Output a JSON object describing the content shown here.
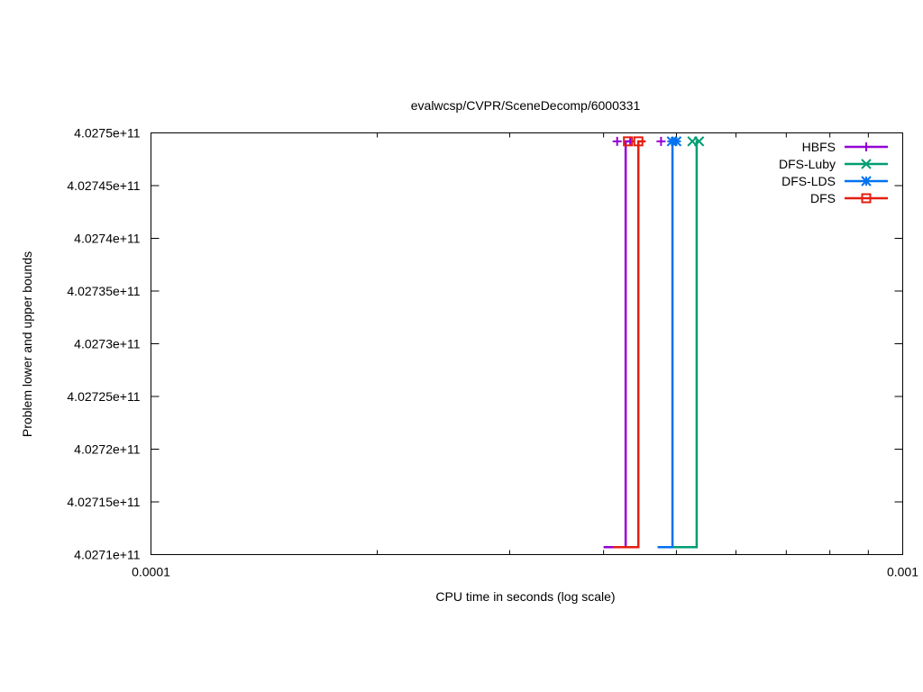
{
  "chart_data": {
    "type": "line",
    "title": "evalwcsp/CVPR/SceneDecomp/6000331",
    "xlabel": "CPU time in seconds (log scale)",
    "ylabel": "Problem lower and upper bounds",
    "x_scale": "log",
    "xlim": [
      0.0001,
      0.001
    ],
    "ylim": [
      402710000000,
      402750000000
    ],
    "x_ticks": [
      {
        "value": 0.0001,
        "label": "0.0001"
      },
      {
        "value": 0.001,
        "label": "0.001"
      }
    ],
    "y_ticks": [
      {
        "value": 402710000000,
        "label": "4.0271e+11"
      },
      {
        "value": 402715000000,
        "label": "4.02715e+11"
      },
      {
        "value": 402720000000,
        "label": "4.0272e+11"
      },
      {
        "value": 402725000000,
        "label": "4.02725e+11"
      },
      {
        "value": 402730000000,
        "label": "4.0273e+11"
      },
      {
        "value": 402735000000,
        "label": "4.02735e+11"
      },
      {
        "value": 402740000000,
        "label": "4.0274e+11"
      },
      {
        "value": 402745000000,
        "label": "4.02745e+11"
      },
      {
        "value": 402750000000,
        "label": "4.0275e+11"
      }
    ],
    "grid": false,
    "legend_position": "top-right",
    "series": [
      {
        "name": "HBFS",
        "color": "#9400d3",
        "marker": "plus",
        "lower": [
          [
            0.0004,
            402710700000
          ],
          [
            0.000428,
            402710700000
          ]
        ],
        "upper": [
          [
            0.000428,
            402749200000
          ],
          [
            0.000434,
            402749200000
          ]
        ],
        "points": [
          [
            0.000417,
            402749200000
          ],
          [
            0.000434,
            402749200000
          ],
          [
            0.000477,
            402749200000
          ]
        ]
      },
      {
        "name": "DFS-Luby",
        "color": "#009e73",
        "marker": "cross",
        "lower": [
          [
            0.000494,
            402710700000
          ],
          [
            0.000532,
            402710700000
          ]
        ],
        "upper": [
          [
            0.000532,
            402749200000
          ],
          [
            0.000536,
            402749200000
          ]
        ],
        "points": [
          [
            0.000525,
            402749200000
          ],
          [
            0.000536,
            402749200000
          ]
        ]
      },
      {
        "name": "DFS-LDS",
        "color": "#0072f0",
        "marker": "star",
        "lower": [
          [
            0.000472,
            402710700000
          ],
          [
            0.000494,
            402710700000
          ]
        ],
        "upper": [
          [
            0.000494,
            402749200000
          ],
          [
            0.0005,
            402749200000
          ]
        ],
        "points": [
          [
            0.000493,
            402749200000
          ],
          [
            0.0005,
            402749200000
          ]
        ]
      },
      {
        "name": "DFS",
        "color": "#e51e10",
        "marker": "square",
        "lower": [
          [
            0.000412,
            402710700000
          ],
          [
            0.000445,
            402710700000
          ]
        ],
        "upper": [
          [
            0.000445,
            402749200000
          ],
          [
            0.000455,
            402749200000
          ]
        ],
        "points": [
          [
            0.000431,
            402749200000
          ],
          [
            0.000445,
            402749200000
          ]
        ]
      }
    ]
  }
}
